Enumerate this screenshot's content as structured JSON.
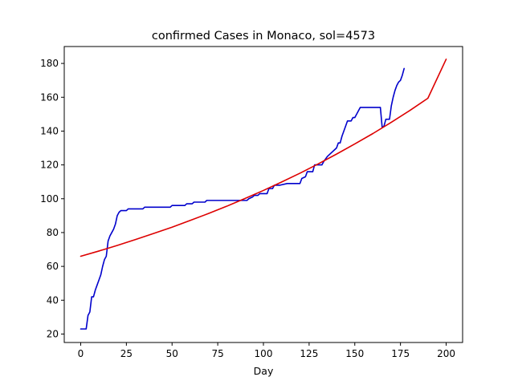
{
  "chart_data": {
    "type": "line",
    "title": "confirmed Cases in Monaco, sol=4573",
    "xlabel": "Day",
    "ylabel": "",
    "xlim": [
      -9,
      209
    ],
    "ylim": [
      15,
      190
    ],
    "xticks": [
      0,
      25,
      50,
      75,
      100,
      125,
      150,
      175,
      200
    ],
    "yticks": [
      20,
      40,
      60,
      80,
      100,
      120,
      140,
      160,
      180
    ],
    "grid": false,
    "legend": "none",
    "series": [
      {
        "color": "#0000cc",
        "style": "step",
        "x": [
          0,
          3,
          4,
          5,
          6,
          7,
          8,
          9,
          10,
          11,
          12,
          13,
          14,
          15,
          16,
          17,
          18,
          19,
          20,
          21,
          22,
          25,
          26,
          34,
          35,
          49,
          50,
          57,
          58,
          61,
          62,
          68,
          69,
          91,
          92,
          94,
          95,
          97,
          98,
          102,
          103,
          105,
          106,
          108,
          109,
          113,
          114,
          120,
          121,
          123,
          124,
          127,
          128,
          132,
          133,
          135,
          136,
          140,
          141,
          142,
          143,
          145,
          146,
          148,
          149,
          150,
          151,
          152,
          153,
          164,
          165,
          166,
          167,
          169,
          170,
          171,
          172,
          173,
          174,
          175,
          176,
          177
        ],
        "values": [
          23,
          23,
          31,
          33,
          42,
          42,
          46,
          49,
          52,
          55,
          60,
          64,
          66,
          75,
          78,
          80,
          82,
          85,
          90,
          92,
          93,
          93,
          94,
          94,
          95,
          95,
          96,
          96,
          97,
          97,
          98,
          98,
          99,
          99,
          100,
          101,
          102,
          102,
          103,
          103,
          106,
          106,
          108,
          108,
          108,
          109,
          109,
          109,
          112,
          113,
          116,
          116,
          120,
          120,
          122,
          125,
          126,
          130,
          133,
          133,
          137,
          143,
          146,
          146,
          148,
          148,
          150,
          152,
          154,
          154,
          142,
          143,
          147,
          147,
          155,
          160,
          164,
          167,
          169,
          170,
          173,
          177
        ]
      },
      {
        "color": "#dd0000",
        "style": "curve",
        "x": [
          0,
          10,
          20,
          30,
          40,
          50,
          60,
          70,
          80,
          90,
          100,
          110,
          120,
          130,
          140,
          150,
          160,
          170,
          180,
          190,
          200
        ],
        "values": [
          66.0,
          69.1,
          72.4,
          75.9,
          79.5,
          83.2,
          87.2,
          91.3,
          95.6,
          100.2,
          104.9,
          109.9,
          115.1,
          120.6,
          126.4,
          132.4,
          138.6,
          145.2,
          152.1,
          159.4,
          182.5
        ]
      }
    ]
  }
}
